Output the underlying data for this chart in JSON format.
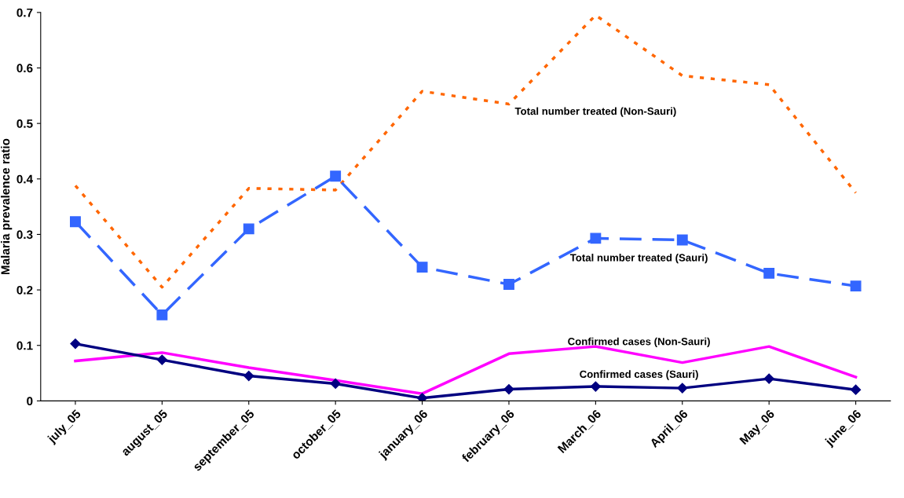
{
  "chart_data": {
    "type": "line",
    "ylabel": "Malaria prevalence ratio",
    "categories": [
      "july_05",
      "august_05",
      "september_05",
      "october_05",
      "january_06",
      "february_06",
      "March_06",
      "April_06",
      "May_06",
      "june_06"
    ],
    "ylim": [
      0,
      0.7
    ],
    "yticks": [
      {
        "value": 0,
        "label": "0"
      },
      0.1,
      0.2,
      0.3,
      0.4,
      0.5,
      0.6,
      0.7
    ],
    "grid": false,
    "series": [
      {
        "name": "Total number treated (Non-Sauri)",
        "color": "#ff6600",
        "line_style": "dotted",
        "marker": "none",
        "values": [
          0.388,
          0.205,
          0.383,
          0.38,
          0.558,
          0.535,
          0.695,
          0.586,
          0.57,
          0.375
        ]
      },
      {
        "name": "Total number treated (Sauri)",
        "color": "#3366ff",
        "line_style": "dashed",
        "marker": "square",
        "values": [
          0.323,
          0.155,
          0.31,
          0.405,
          0.241,
          0.21,
          0.293,
          0.29,
          0.23,
          0.207
        ]
      },
      {
        "name": "Confirmed cases (Non-Sauri)",
        "color": "#ff00ff",
        "line_style": "solid",
        "marker": "none",
        "values": [
          0.072,
          0.087,
          0.06,
          0.037,
          0.013,
          0.085,
          0.098,
          0.069,
          0.098,
          0.043
        ]
      },
      {
        "name": "Confirmed cases (Sauri)",
        "color": "#000080",
        "line_style": "solid",
        "marker": "diamond",
        "values": [
          0.103,
          0.074,
          0.045,
          0.031,
          0.005,
          0.021,
          0.026,
          0.023,
          0.04,
          0.02
        ]
      }
    ]
  }
}
